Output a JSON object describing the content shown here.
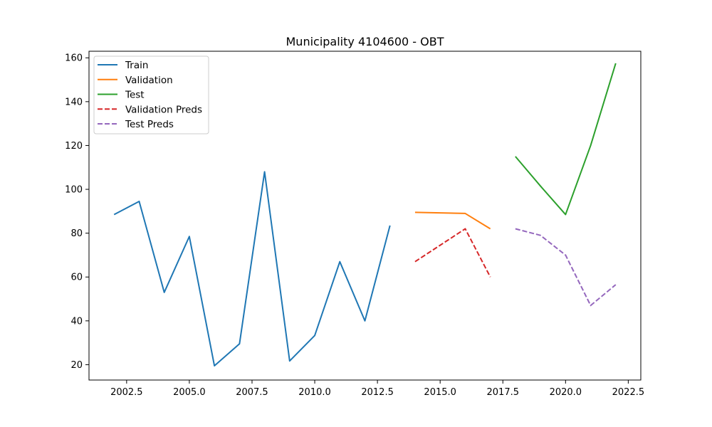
{
  "chart_data": {
    "type": "line",
    "title": "Municipality 4104600 - OBT",
    "xlabel": "",
    "ylabel": "",
    "xlim": [
      2001.0,
      2023.0
    ],
    "ylim": [
      13.0,
      163.0
    ],
    "x_ticks": [
      2002.5,
      2005.0,
      2007.5,
      2010.0,
      2012.5,
      2015.0,
      2017.5,
      2020.0,
      2022.5
    ],
    "x_tick_labels": [
      "2002.5",
      "2005.0",
      "2007.5",
      "2010.0",
      "2012.5",
      "2015.0",
      "2017.5",
      "2020.0",
      "2022.5"
    ],
    "y_ticks": [
      20,
      40,
      60,
      80,
      100,
      120,
      140,
      160
    ],
    "y_tick_labels": [
      "20",
      "40",
      "60",
      "80",
      "100",
      "120",
      "140",
      "160"
    ],
    "grid": false,
    "legend_position": "top-left",
    "series": [
      {
        "name": "Train",
        "color": "#1f77b4",
        "dashed": false,
        "x": [
          2002,
          2003,
          2004,
          2005,
          2006,
          2007,
          2008,
          2009,
          2010,
          2011,
          2012,
          2013
        ],
        "y": [
          88.5,
          94.5,
          53,
          78.5,
          19.5,
          29.5,
          108,
          21.7,
          33.3,
          67,
          40,
          83.5
        ]
      },
      {
        "name": "Validation",
        "color": "#ff7f0e",
        "dashed": false,
        "x": [
          2014,
          2016,
          2017
        ],
        "y": [
          89.5,
          89,
          82
        ]
      },
      {
        "name": "Test",
        "color": "#2ca02c",
        "dashed": false,
        "x": [
          2018,
          2019,
          2020,
          2021,
          2022
        ],
        "y": [
          115,
          101.5,
          88.5,
          120,
          157.5
        ]
      },
      {
        "name": "Validation Preds",
        "color": "#d62728",
        "dashed": true,
        "x": [
          2014,
          2016,
          2017
        ],
        "y": [
          67,
          82,
          60
        ]
      },
      {
        "name": "Test Preds",
        "color": "#9467bd",
        "dashed": true,
        "x": [
          2018,
          2019,
          2020,
          2021,
          2022
        ],
        "y": [
          82,
          79,
          70,
          47,
          56.5
        ]
      }
    ]
  }
}
